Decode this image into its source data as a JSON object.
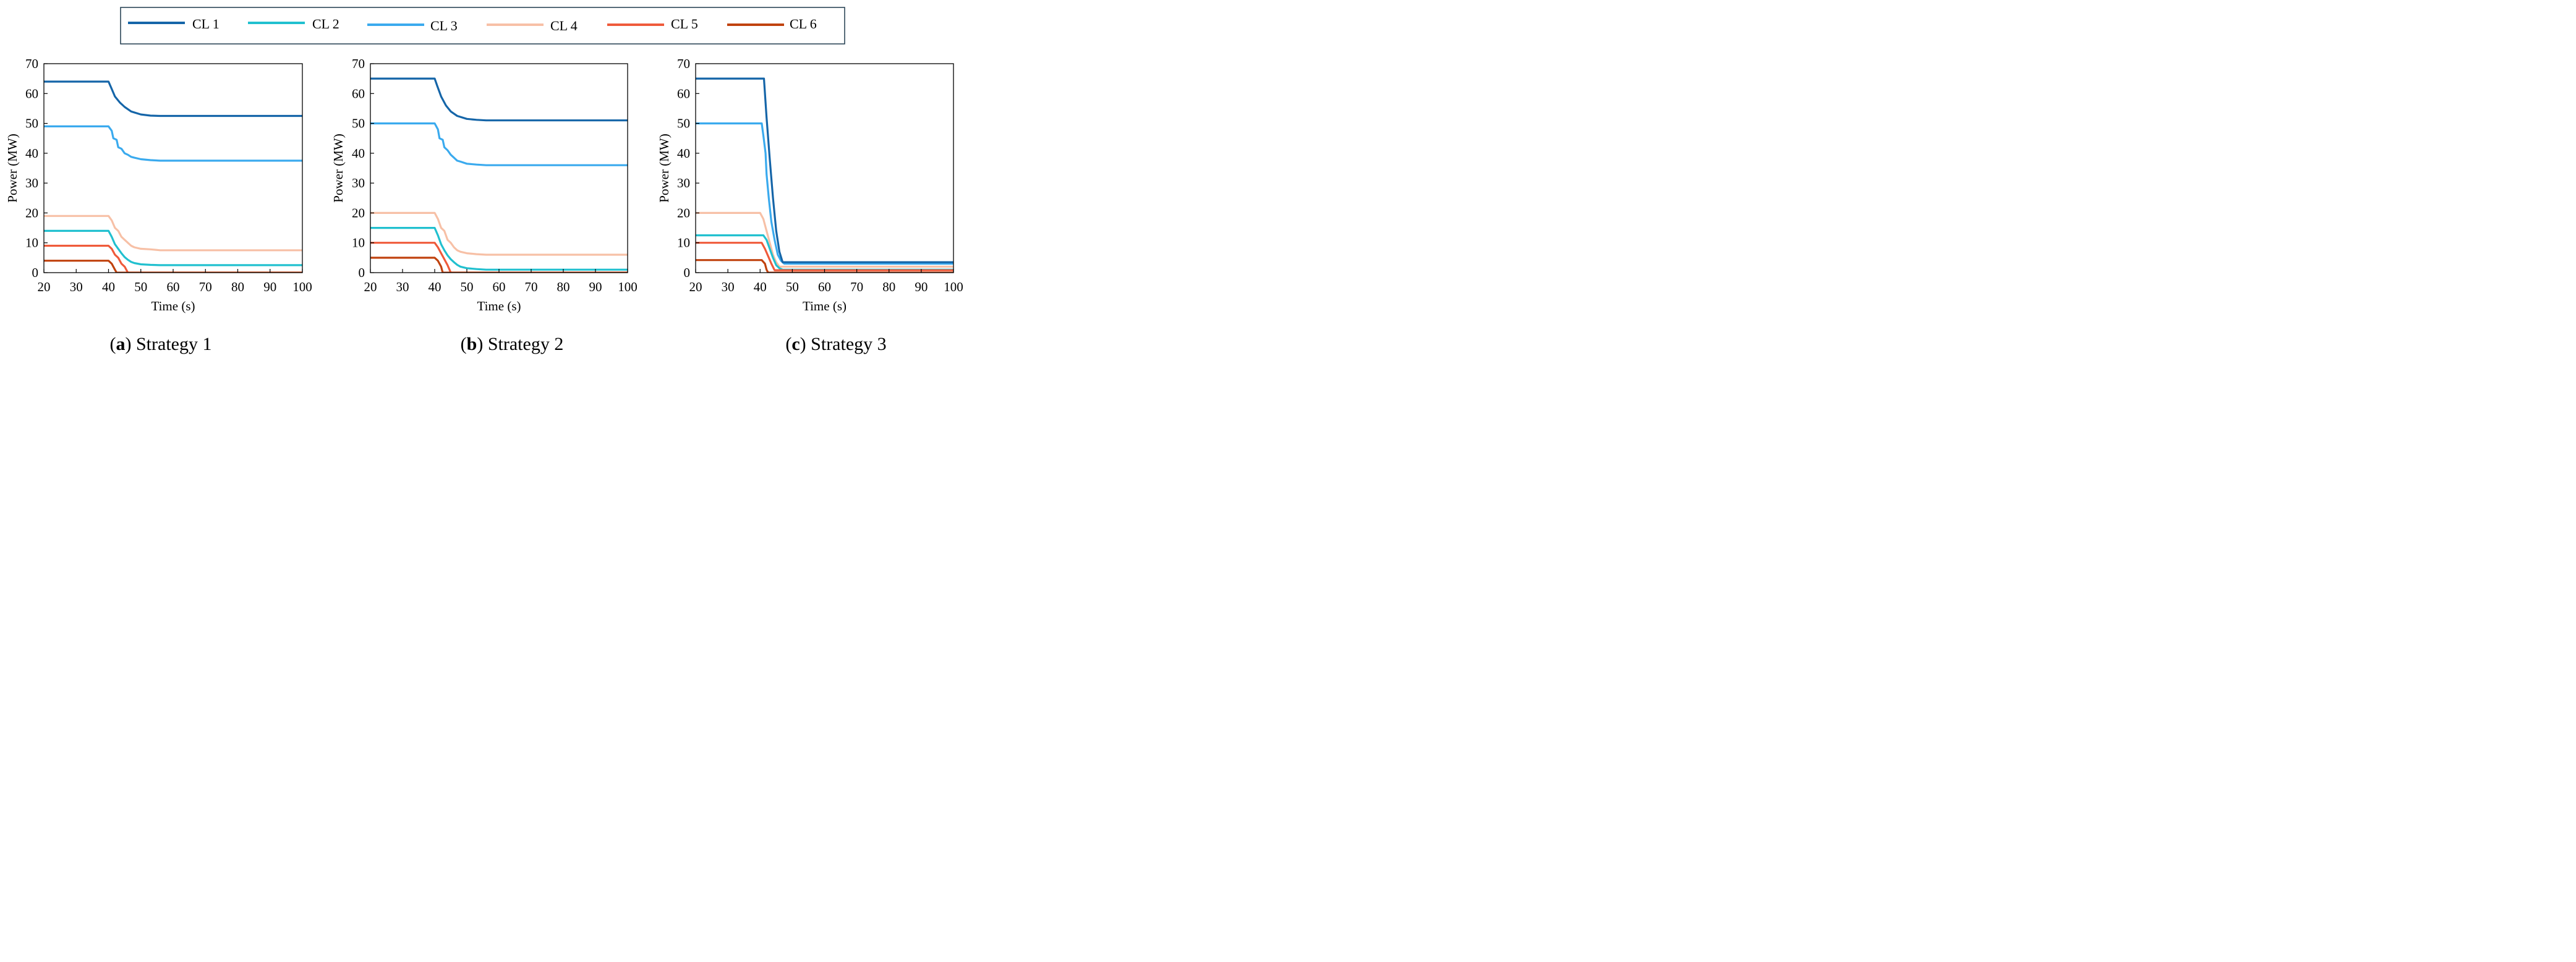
{
  "colors": {
    "CL 1": "#1565a8",
    "CL 2": "#21c0cf",
    "CL 3": "#3aaaee",
    "CL 4": "#f7c0a6",
    "CL 5": "#ef5a3a",
    "CL 6": "#c0420e",
    "frame": "#1f3a4d"
  },
  "legend": {
    "entries": [
      "CL 1",
      "CL 2",
      "CL 3",
      "CL 4",
      "CL 5",
      "CL 6"
    ]
  },
  "chart_data": [
    {
      "type": "line",
      "caption_letter": "a",
      "caption_text": " Strategy 1",
      "xlabel": "Time (s)",
      "ylabel": "Power (MW)",
      "xlim": [
        20,
        100
      ],
      "ylim": [
        0,
        70
      ],
      "xticks": [
        "20",
        "30",
        "40",
        "50",
        "60",
        "70",
        "80",
        "90",
        "100"
      ],
      "yticks": [
        "0",
        "10",
        "20",
        "30",
        "40",
        "50",
        "60",
        "70"
      ],
      "series": [
        {
          "name": "CL 1",
          "x": [
            20,
            40,
            40.8,
            42,
            43.5,
            45,
            47,
            50,
            53,
            56,
            100
          ],
          "y": [
            64,
            64,
            62,
            59,
            57,
            55.5,
            54,
            53,
            52.6,
            52.5,
            52.5
          ]
        },
        {
          "name": "CL 3",
          "x": [
            20,
            40,
            41,
            41.5,
            42.5,
            43,
            44,
            45,
            46,
            47,
            48,
            50,
            53,
            56,
            100
          ],
          "y": [
            49,
            49,
            47.5,
            45,
            44.5,
            42,
            41.5,
            40,
            39.5,
            38.8,
            38.5,
            38,
            37.7,
            37.5,
            37.5
          ]
        },
        {
          "name": "CL 4",
          "x": [
            20,
            40,
            41,
            42,
            43,
            44,
            45,
            46,
            47,
            48,
            50,
            53,
            56,
            100
          ],
          "y": [
            19,
            19,
            17.5,
            15,
            14,
            12,
            11,
            10,
            9,
            8.5,
            8,
            7.8,
            7.5,
            7.5
          ]
        },
        {
          "name": "CL 2",
          "x": [
            20,
            40,
            41,
            42,
            43,
            44,
            45,
            46,
            47,
            48,
            50,
            53,
            56,
            100
          ],
          "y": [
            14,
            14,
            12,
            9.5,
            8,
            6.5,
            5.2,
            4.3,
            3.6,
            3.2,
            2.8,
            2.6,
            2.5,
            2.5
          ]
        },
        {
          "name": "CL 5",
          "x": [
            20,
            40,
            41,
            42,
            43,
            44,
            45,
            46,
            100
          ],
          "y": [
            9,
            9,
            8,
            6,
            5,
            3,
            2,
            0,
            0
          ]
        },
        {
          "name": "CL 6",
          "x": [
            20,
            40,
            41,
            42,
            42.5,
            100
          ],
          "y": [
            4,
            4,
            3,
            1,
            0,
            0
          ]
        }
      ]
    },
    {
      "type": "line",
      "caption_letter": "b",
      "caption_text": " Strategy 2",
      "xlabel": "Time (s)",
      "ylabel": "Power (MW)",
      "xlim": [
        20,
        100
      ],
      "ylim": [
        0,
        70
      ],
      "xticks": [
        "20",
        "30",
        "40",
        "50",
        "60",
        "70",
        "80",
        "90",
        "100"
      ],
      "yticks": [
        "0",
        "10",
        "20",
        "30",
        "40",
        "50",
        "60",
        "70"
      ],
      "series": [
        {
          "name": "CL 1",
          "x": [
            20,
            40,
            40.8,
            42,
            43.5,
            45,
            47,
            50,
            53,
            56,
            100
          ],
          "y": [
            65,
            65,
            62.5,
            59,
            56,
            54,
            52.5,
            51.5,
            51.2,
            51,
            51
          ]
        },
        {
          "name": "CL 3",
          "x": [
            20,
            40,
            41,
            41.5,
            42.5,
            43,
            44,
            45,
            46,
            47,
            48,
            50,
            53,
            56,
            100
          ],
          "y": [
            50,
            50,
            48,
            45,
            44.5,
            42,
            41,
            39.5,
            38.5,
            37.5,
            37.2,
            36.5,
            36.2,
            36,
            36
          ]
        },
        {
          "name": "CL 4",
          "x": [
            20,
            40,
            41,
            42,
            43,
            44,
            45,
            46,
            47,
            48,
            50,
            53,
            56,
            100
          ],
          "y": [
            20,
            20,
            18,
            15,
            14,
            11,
            10,
            8.5,
            7.5,
            7,
            6.5,
            6.2,
            6,
            6
          ]
        },
        {
          "name": "CL 2",
          "x": [
            20,
            40,
            41,
            42,
            43,
            44,
            45,
            46,
            47,
            48,
            50,
            53,
            56,
            100
          ],
          "y": [
            15,
            15,
            12.5,
            9.5,
            7.5,
            5.8,
            4.5,
            3.5,
            2.6,
            2,
            1.5,
            1.2,
            1,
            1
          ]
        },
        {
          "name": "CL 5",
          "x": [
            20,
            40,
            41,
            42,
            43,
            44,
            45,
            100
          ],
          "y": [
            10,
            10,
            8.5,
            6.5,
            4.5,
            2.5,
            0,
            0
          ]
        },
        {
          "name": "CL 6",
          "x": [
            20,
            40,
            41,
            42,
            42.5,
            100
          ],
          "y": [
            5,
            5,
            4,
            2,
            0,
            0
          ]
        }
      ]
    },
    {
      "type": "line",
      "caption_letter": "c",
      "caption_text": " Strategy 3",
      "xlabel": "Time (s)",
      "ylabel": "Power (MW)",
      "xlim": [
        20,
        100
      ],
      "ylim": [
        0,
        70
      ],
      "xticks": [
        "20",
        "30",
        "40",
        "50",
        "60",
        "70",
        "80",
        "90",
        "100"
      ],
      "yticks": [
        "0",
        "10",
        "20",
        "30",
        "40",
        "50",
        "60",
        "70"
      ],
      "series": [
        {
          "name": "CL 4",
          "x": [
            20,
            40,
            41,
            42,
            43,
            44,
            45,
            46,
            100
          ],
          "y": [
            20,
            20,
            18,
            14,
            10,
            6,
            3.5,
            2,
            2
          ]
        },
        {
          "name": "CL 2",
          "x": [
            20,
            41,
            42,
            43,
            44,
            45,
            46,
            47,
            100
          ],
          "y": [
            12.5,
            12.5,
            11,
            8,
            5,
            2.5,
            1.5,
            1,
            1
          ]
        },
        {
          "name": "CL 5",
          "x": [
            20,
            40.5,
            41.5,
            42.5,
            43.5,
            44.5,
            100
          ],
          "y": [
            10,
            10,
            8,
            5.5,
            3,
            0.8,
            0.8
          ]
        },
        {
          "name": "CL 6",
          "x": [
            20,
            40.5,
            41.5,
            42,
            42.5,
            100
          ],
          "y": [
            4.2,
            4.2,
            3,
            1,
            0,
            0
          ]
        },
        {
          "name": "CL 3",
          "x": [
            20,
            40.5,
            41,
            41.7,
            42,
            42.7,
            43.5,
            44.5,
            45.5,
            46.5,
            47.5,
            100
          ],
          "y": [
            50,
            50,
            46,
            40,
            33,
            25,
            17,
            11,
            6,
            4,
            3,
            3
          ]
        },
        {
          "name": "CL 1",
          "x": [
            20,
            41.2,
            42,
            43,
            44,
            45,
            46,
            47,
            100
          ],
          "y": [
            65,
            65,
            52,
            38,
            25,
            14,
            7,
            3.5,
            3.5
          ]
        }
      ]
    }
  ]
}
